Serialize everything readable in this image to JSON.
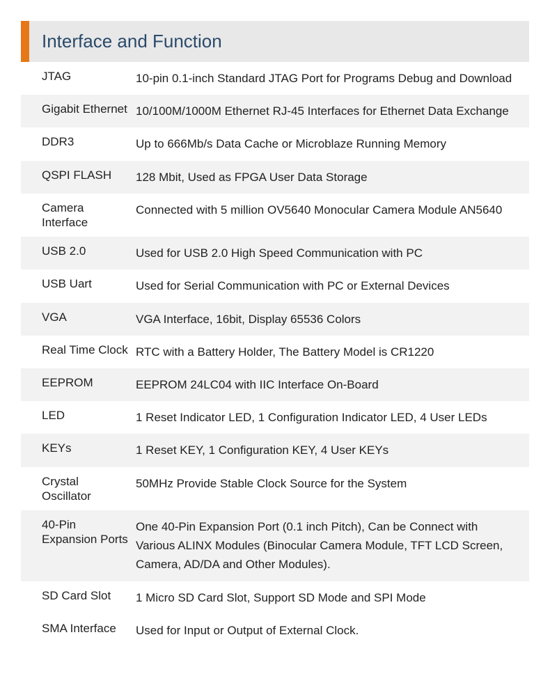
{
  "header": {
    "title": "Interface and Function",
    "bar_color": "#e67817",
    "title_bg": "#e8e8e8",
    "title_color": "#2a4a6a"
  },
  "colors": {
    "row_alt_bg": "#f2f2f2",
    "text": "#222222"
  },
  "rows": [
    {
      "label": "JTAG",
      "desc": "10-pin 0.1-inch Standard JTAG Port for Programs Debug and Download"
    },
    {
      "label": "Gigabit Ethernet",
      "desc": "10/100M/1000M Ethernet RJ-45 Interfaces for Ethernet Data Exchange"
    },
    {
      "label": "DDR3",
      "desc": "Up to 666Mb/s Data Cache or Microblaze Running Memory"
    },
    {
      "label": "QSPI FLASH",
      "desc": "128 Mbit, Used as FPGA User Data Storage"
    },
    {
      "label": "Camera Interface",
      "desc": "Connected with 5 million OV5640 Monocular Camera Module AN5640"
    },
    {
      "label": "USB 2.0",
      "desc": "Used for USB 2.0 High Speed Communication with PC"
    },
    {
      "label": "USB Uart",
      "desc": "Used for Serial Communication with PC or External Devices"
    },
    {
      "label": "VGA",
      "desc": "VGA Interface, 16bit, Display 65536 Colors"
    },
    {
      "label": "Real Time Clock",
      "desc": "RTC with a Battery Holder, The Battery Model is CR1220"
    },
    {
      "label": "EEPROM",
      "desc": "EEPROM 24LC04 with IIC Interface On-Board"
    },
    {
      "label": "LED",
      "desc": "1 Reset Indicator LED, 1 Configuration Indicator LED, 4 User LEDs"
    },
    {
      "label": "KEYs",
      "desc": "1 Reset KEY, 1 Configuration KEY, 4 User KEYs"
    },
    {
      "label": "Crystal Oscillator",
      "desc": "50MHz Provide Stable Clock Source for the System"
    },
    {
      "label": "40-Pin Expansion Ports",
      "desc": "One 40-Pin Expansion Port (0.1 inch Pitch), Can be Connect with Various ALINX Modules (Binocular Camera Module, TFT LCD Screen, Camera, AD/DA and Other Modules)."
    },
    {
      "label": "SD Card Slot",
      "desc": "1 Micro SD Card Slot,  Support SD Mode and SPI Mode"
    },
    {
      "label": "SMA Interface",
      "desc": "Used for Input or Output of External Clock."
    }
  ]
}
